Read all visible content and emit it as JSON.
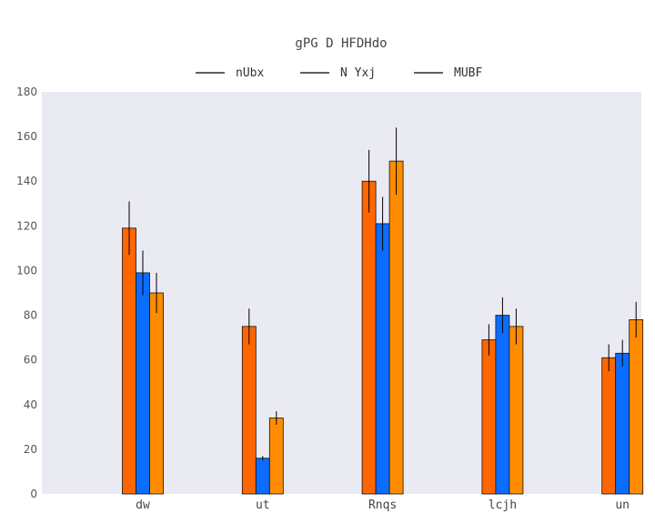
{
  "chart_data": {
    "type": "bar",
    "title": "gPG D HFDHdo",
    "xlabel": "",
    "ylabel": "",
    "categories": [
      "dw",
      "ut",
      "Rnqs",
      "lcjh",
      "un"
    ],
    "ylim": [
      0,
      180
    ],
    "yticks": [
      0,
      20,
      40,
      60,
      80,
      100,
      120,
      140,
      160,
      180
    ],
    "legend_position": "top-center",
    "grid": false,
    "background": "#eaeaf2",
    "series": [
      {
        "name": "nUbx",
        "color": "#ff6600",
        "values": [
          119,
          75,
          140,
          69,
          61
        ],
        "errors": [
          12,
          8,
          14,
          7,
          6
        ]
      },
      {
        "name": "N Yxj",
        "color": "#0b6dff",
        "values": [
          99,
          16,
          121,
          80,
          63
        ],
        "errors": [
          10,
          1,
          12,
          8,
          6
        ]
      },
      {
        "name": "MUBF",
        "color": "#ff8c00",
        "values": [
          90,
          34,
          149,
          75,
          78
        ],
        "errors": [
          9,
          3,
          15,
          8,
          8
        ]
      }
    ]
  }
}
